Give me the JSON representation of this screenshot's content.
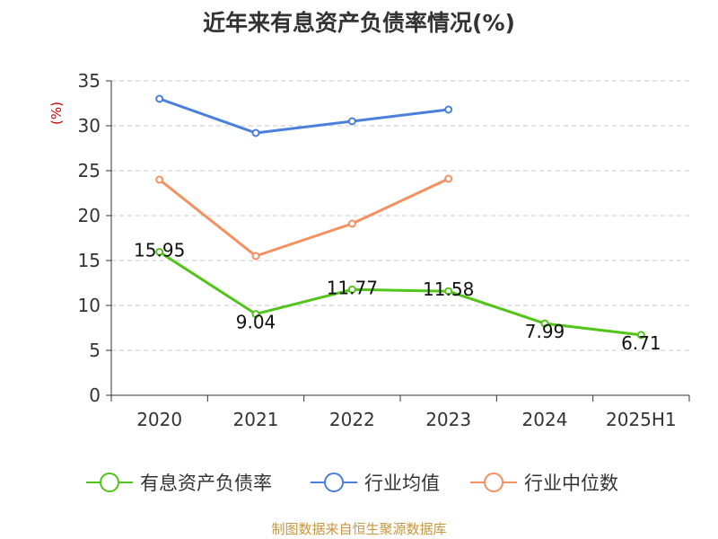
{
  "title": "近年来有息资产负债率情况(%)",
  "footer": "制图数据来自恒生聚源数据库",
  "chart_data": {
    "type": "line",
    "title": "近年来有息资产负债率情况(%)",
    "ylabel": "(%)",
    "ylim": [
      0,
      35
    ],
    "yticks": [
      0,
      5,
      10,
      15,
      20,
      25,
      30,
      35
    ],
    "grid": true,
    "legend_position": "bottom",
    "categories": [
      "2020",
      "2021",
      "2022",
      "2023",
      "2024",
      "2025H1"
    ],
    "series": [
      {
        "name": "有息资产负债率",
        "color": "#52c41a",
        "values": [
          15.95,
          9.04,
          11.77,
          11.58,
          7.99,
          6.71
        ],
        "labels": [
          "15.95",
          "9.04",
          "11.77",
          "11.58",
          "7.99",
          "6.71"
        ]
      },
      {
        "name": "行业均值",
        "color": "#4a7fdb",
        "values": [
          33.0,
          29.2,
          30.5,
          31.8,
          null,
          null
        ]
      },
      {
        "name": "行业中位数",
        "color": "#f79060",
        "values": [
          24.0,
          15.5,
          19.1,
          24.1,
          null,
          null
        ]
      }
    ]
  }
}
